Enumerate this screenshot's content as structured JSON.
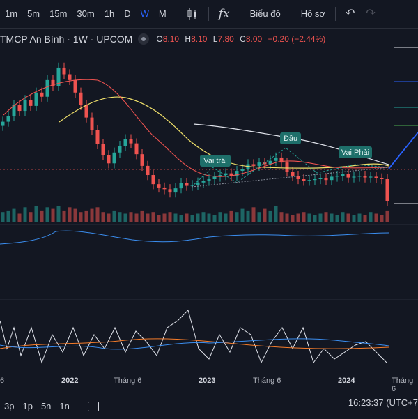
{
  "toolbar": {
    "timeframes": [
      "1m",
      "5m",
      "15m",
      "30m",
      "1h",
      "D",
      "W",
      "M"
    ],
    "active_timeframe": "W",
    "fx_label": "fx",
    "chart_type_label": "Biểu đồ",
    "profile_label": "Hồ sơ"
  },
  "legend": {
    "symbol": "TMCP An Bình · 1W · UPCOM",
    "open_label": "O",
    "open": "8.10",
    "high_label": "H",
    "high": "8.10",
    "low_label": "L",
    "low": "7.80",
    "close_label": "C",
    "close": "8.00",
    "change": "−0.20 (−2.44%)"
  },
  "annotations": {
    "left_shoulder": "Vai trái",
    "head": "Đầu",
    "right_shoulder": "Vai Phải"
  },
  "x_axis": {
    "labels": [
      "6",
      "2022",
      "Tháng 6",
      "2023",
      "Tháng 6",
      "2024",
      "Tháng 6"
    ]
  },
  "bottom": {
    "ranges": [
      "3p",
      "1p",
      "5n",
      "1n"
    ],
    "clock": "16:23:37 (UTC+7"
  },
  "colors": {
    "background": "#131722",
    "up": "#26a69a",
    "down": "#ef5350",
    "ma_red": "#ef5350",
    "ma_yellow": "#f0e06a",
    "ma_white": "#e0e3eb",
    "blue": "#2962ff",
    "annotation_bg": "#1e6f6a"
  },
  "chart_data": {
    "type": "candlestick",
    "x": [
      "2021-W36",
      "2021-W38",
      "2021-W40",
      "2021-W42",
      "2021-W44",
      "2021-W46",
      "2021-W48",
      "2021-W50",
      "2022-W01",
      "2022-W03",
      "2022-W05",
      "2022-W07",
      "2022-W09",
      "2022-W11",
      "2022-W13",
      "2022-W15",
      "2022-W17",
      "2022-W19",
      "2022-W21",
      "2022-W23",
      "2022-W25",
      "2022-W27",
      "2022-W29",
      "2022-W31",
      "2022-W33",
      "2022-W35",
      "2022-W37",
      "2022-W39",
      "2022-W41",
      "2022-W43",
      "2022-W45",
      "2022-W47",
      "2022-W49",
      "2022-W51",
      "2023-W01",
      "2023-W03",
      "2023-W05",
      "2023-W07",
      "2023-W09",
      "2023-W11",
      "2023-W13",
      "2023-W15",
      "2023-W17",
      "2023-W19",
      "2023-W21",
      "2023-W23",
      "2023-W25",
      "2023-W27",
      "2023-W29",
      "2023-W31",
      "2023-W33",
      "2023-W35",
      "2023-W37",
      "2023-W39",
      "2023-W41",
      "2023-W43",
      "2023-W45",
      "2023-W47",
      "2023-W49",
      "2023-W51",
      "2024-W01",
      "2024-W03",
      "2024-W05",
      "2024-W07",
      "2024-W09",
      "2024-W11",
      "2024-W13",
      "2024-W15",
      "2024-W17",
      "2024-W19"
    ],
    "close": [
      17.5,
      18.2,
      19.5,
      18.8,
      20.1,
      19.4,
      21.0,
      20.5,
      22.5,
      21.8,
      24.0,
      23.2,
      22.5,
      21.0,
      19.5,
      18.0,
      16.5,
      14.8,
      13.5,
      12.5,
      13.8,
      14.6,
      15.4,
      14.9,
      13.6,
      12.2,
      11.1,
      10.0,
      9.6,
      9.4,
      9.0,
      9.5,
      10.1,
      9.8,
      9.9,
      10.2,
      10.4,
      10.6,
      10.9,
      11.1,
      11.3,
      11.0,
      11.6,
      11.8,
      12.4,
      12.2,
      12.6,
      12.4,
      12.8,
      13.2,
      12.6,
      11.5,
      11.0,
      10.6,
      10.4,
      10.5,
      10.6,
      10.7,
      10.5,
      10.9,
      11.0,
      11.2,
      10.8,
      10.9,
      11.0,
      10.8,
      10.9,
      10.7,
      10.6,
      8.0
    ],
    "volume": [
      6,
      7,
      8,
      5,
      9,
      6,
      10,
      7,
      9,
      8,
      10,
      7,
      9,
      8,
      6,
      7,
      8,
      9,
      6,
      5,
      7,
      6,
      5,
      6,
      5,
      7,
      5,
      6,
      4,
      5,
      6,
      5,
      4,
      5,
      4,
      5,
      6,
      5,
      4,
      6,
      5,
      7,
      6,
      8,
      7,
      9,
      6,
      8,
      7,
      10,
      6,
      5,
      4,
      5,
      6,
      5,
      4,
      5,
      6,
      5,
      4,
      6,
      5,
      4,
      5,
      4,
      6,
      5,
      4,
      7
    ],
    "title": "TMCP An Bình · 1W · UPCOM",
    "patterns": [
      "Vai trái",
      "Đầu",
      "Vai Phải"
    ]
  }
}
